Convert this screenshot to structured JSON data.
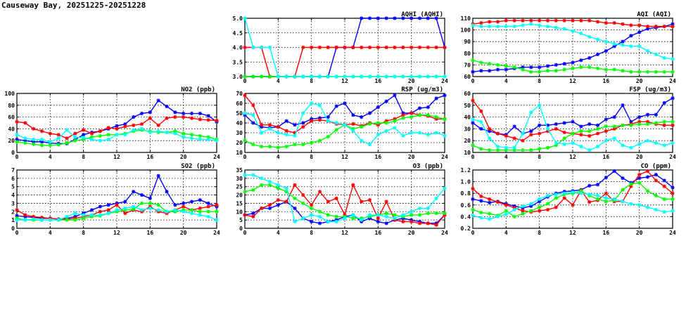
{
  "page_title": "Causeway Bay, 20251225-20251228",
  "series_colors": [
    "#0000ff",
    "#ff0000",
    "#00ff00",
    "#00ffff"
  ],
  "chart_data": [
    {
      "id": "aqhi",
      "type": "line",
      "title": "AQHI (AQHI)",
      "xlim": [
        0,
        24
      ],
      "ylim": [
        3.0,
        5.0
      ],
      "grid": true,
      "xticks": [
        0,
        4,
        8,
        12,
        16,
        20,
        24
      ],
      "yticks": [
        3.0,
        3.5,
        4.0,
        4.5,
        5.0
      ],
      "yfmt": 1,
      "series": [
        {
          "color": "#0000ff",
          "values": [
            3,
            3,
            3,
            3,
            3,
            3,
            3,
            3,
            3,
            3,
            3,
            4,
            4,
            4,
            5,
            5,
            5,
            5,
            5,
            5,
            5,
            5,
            5,
            5,
            4
          ]
        },
        {
          "color": "#ff0000",
          "values": [
            4,
            4,
            4,
            3,
            3,
            3,
            3,
            4,
            4,
            4,
            4,
            4,
            4,
            4,
            4,
            4,
            4,
            4,
            4,
            4,
            4,
            4,
            4,
            4,
            4
          ]
        },
        {
          "color": "#00ff00",
          "values": [
            3,
            3,
            3,
            3,
            3,
            3,
            3,
            3,
            3,
            3,
            3,
            3,
            3,
            3,
            3,
            3,
            3,
            3,
            3,
            3,
            3,
            3,
            3,
            3,
            3
          ]
        },
        {
          "color": "#00ffff",
          "values": [
            5,
            4,
            4,
            4,
            3,
            3,
            3,
            3,
            3,
            3,
            3,
            3,
            3,
            3,
            3,
            3,
            3,
            3,
            3,
            3,
            3,
            3,
            3,
            3,
            3
          ]
        }
      ]
    },
    {
      "id": "aqi",
      "type": "line",
      "title": "AQI (AQI)",
      "xlim": [
        0,
        24
      ],
      "ylim": [
        60,
        110
      ],
      "grid": true,
      "xticks": [
        0,
        4,
        8,
        12,
        16,
        20,
        24
      ],
      "yticks": [
        60,
        70,
        80,
        90,
        100,
        110
      ],
      "yfmt": 0,
      "series": [
        {
          "color": "#0000ff",
          "values": [
            64,
            65,
            65,
            66,
            66,
            67,
            68,
            68,
            68,
            69,
            70,
            71,
            72,
            74,
            76,
            79,
            82,
            86,
            90,
            95,
            98,
            101,
            102,
            103,
            105
          ]
        },
        {
          "color": "#ff0000",
          "values": [
            105,
            106,
            107,
            107,
            108,
            108,
            108,
            108,
            108,
            108,
            108,
            108,
            108,
            108,
            108,
            107,
            106,
            106,
            105,
            104,
            104,
            103,
            103,
            103,
            103
          ]
        },
        {
          "color": "#00ff00",
          "values": [
            74,
            72,
            71,
            70,
            69,
            68,
            66,
            64,
            64,
            65,
            65,
            66,
            67,
            68,
            68,
            67,
            66,
            66,
            65,
            64,
            64,
            64,
            64,
            64,
            64
          ]
        },
        {
          "color": "#00ffff",
          "values": [
            104,
            103,
            103,
            103,
            103,
            103,
            104,
            105,
            104,
            103,
            102,
            101,
            99,
            97,
            94,
            92,
            90,
            88,
            87,
            86,
            86,
            82,
            79,
            76,
            75
          ]
        }
      ]
    },
    {
      "id": "no2",
      "type": "line",
      "title": "NO2 (ppb)",
      "xlim": [
        0,
        24
      ],
      "ylim": [
        0,
        100
      ],
      "grid": true,
      "xticks": [
        0,
        4,
        8,
        12,
        16,
        20,
        24
      ],
      "yticks": [
        0,
        20,
        40,
        60,
        80,
        100
      ],
      "yfmt": 0,
      "series": [
        {
          "color": "#0000ff",
          "values": [
            22,
            20,
            18,
            18,
            16,
            15,
            15,
            22,
            30,
            34,
            36,
            40,
            45,
            48,
            60,
            66,
            68,
            88,
            78,
            68,
            66,
            66,
            66,
            62,
            52
          ]
        },
        {
          "color": "#ff0000",
          "values": [
            52,
            50,
            40,
            36,
            32,
            30,
            24,
            32,
            38,
            32,
            36,
            42,
            40,
            44,
            46,
            48,
            58,
            46,
            58,
            60,
            60,
            58,
            56,
            55,
            54
          ]
        },
        {
          "color": "#00ff00",
          "values": [
            18,
            16,
            14,
            12,
            12,
            13,
            16,
            20,
            22,
            26,
            28,
            30,
            30,
            32,
            36,
            38,
            36,
            34,
            34,
            36,
            32,
            30,
            28,
            26,
            22
          ]
        },
        {
          "color": "#00ffff",
          "values": [
            30,
            24,
            22,
            22,
            18,
            24,
            38,
            26,
            25,
            22,
            20,
            22,
            30,
            30,
            38,
            40,
            34,
            36,
            34,
            32,
            26,
            24,
            22,
            22,
            20
          ]
        }
      ]
    },
    {
      "id": "rsp",
      "type": "line",
      "title": "RSP (ug/m3)",
      "xlim": [
        0,
        24
      ],
      "ylim": [
        10,
        70
      ],
      "grid": true,
      "xticks": [
        0,
        4,
        8,
        12,
        16,
        20,
        24
      ],
      "yticks": [
        10,
        20,
        30,
        40,
        50,
        60,
        70
      ],
      "yfmt": 0,
      "series": [
        {
          "color": "#0000ff",
          "values": [
            48,
            40,
            36,
            35,
            36,
            42,
            38,
            40,
            44,
            45,
            46,
            57,
            60,
            48,
            46,
            50,
            56,
            62,
            68,
            50,
            50,
            55,
            56,
            65,
            68
          ]
        },
        {
          "color": "#ff0000",
          "values": [
            68,
            58,
            38,
            38,
            36,
            32,
            30,
            36,
            42,
            43,
            42,
            39,
            38,
            39,
            37,
            40,
            38,
            42,
            44,
            48,
            50,
            48,
            47,
            44,
            44
          ]
        },
        {
          "color": "#00ff00",
          "values": [
            22,
            18,
            16,
            16,
            15,
            16,
            18,
            18,
            20,
            22,
            26,
            33,
            38,
            34,
            36,
            39,
            40,
            40,
            42,
            45,
            46,
            48,
            48,
            46,
            44
          ]
        },
        {
          "color": "#00ffff",
          "values": [
            50,
            48,
            30,
            34,
            30,
            28,
            27,
            50,
            60,
            58,
            42,
            40,
            38,
            32,
            22,
            18,
            28,
            32,
            35,
            27,
            30,
            30,
            28,
            30,
            27
          ]
        }
      ]
    },
    {
      "id": "fsp",
      "type": "line",
      "title": "FSP (ug/m3)",
      "xlim": [
        0,
        24
      ],
      "ylim": [
        10,
        60
      ],
      "grid": true,
      "xticks": [
        0,
        4,
        8,
        12,
        16,
        20,
        24
      ],
      "yticks": [
        10,
        20,
        30,
        40,
        50,
        60
      ],
      "yfmt": 0,
      "series": [
        {
          "color": "#0000ff",
          "values": [
            35,
            30,
            28,
            26,
            25,
            32,
            26,
            28,
            33,
            33,
            34,
            35,
            36,
            32,
            34,
            33,
            38,
            40,
            50,
            36,
            40,
            42,
            42,
            52,
            56
          ]
        },
        {
          "color": "#ff0000",
          "values": [
            54,
            45,
            30,
            26,
            24,
            22,
            20,
            25,
            26,
            28,
            30,
            27,
            26,
            25,
            24,
            26,
            28,
            30,
            33,
            34,
            36,
            36,
            34,
            33,
            33
          ]
        },
        {
          "color": "#00ff00",
          "values": [
            16,
            13,
            12,
            12,
            12,
            12,
            12,
            12,
            13,
            14,
            16,
            22,
            26,
            28,
            28,
            30,
            32,
            32,
            33,
            33,
            34,
            34,
            35,
            36,
            36
          ]
        },
        {
          "color": "#00ffff",
          "values": [
            38,
            36,
            22,
            15,
            14,
            14,
            26,
            44,
            50,
            30,
            18,
            17,
            18,
            15,
            12,
            15,
            20,
            22,
            16,
            14,
            17,
            20,
            18,
            16,
            18
          ]
        }
      ]
    },
    {
      "id": "so2",
      "type": "line",
      "title": "SO2 (ppb)",
      "xlim": [
        0,
        24
      ],
      "ylim": [
        0,
        7
      ],
      "grid": true,
      "xticks": [
        0,
        4,
        8,
        12,
        16,
        20,
        24
      ],
      "yticks": [
        0,
        1,
        2,
        3,
        4,
        5,
        6,
        7
      ],
      "yfmt": 0,
      "series": [
        {
          "color": "#0000ff",
          "values": [
            1.5,
            1.4,
            1.3,
            1.2,
            1.2,
            1.1,
            1.2,
            1.4,
            1.8,
            2.2,
            2.6,
            2.8,
            3.0,
            3.2,
            4.4,
            4.0,
            3.6,
            6.3,
            4.4,
            2.8,
            3.0,
            3.2,
            3.4,
            3.0,
            2.6
          ]
        },
        {
          "color": "#ff0000",
          "values": [
            2.2,
            1.6,
            1.4,
            1.3,
            1.2,
            1.1,
            1.1,
            1.2,
            1.4,
            1.6,
            2.0,
            2.2,
            2.8,
            1.8,
            2.2,
            2.0,
            2.6,
            2.0,
            1.8,
            2.2,
            2.6,
            2.2,
            2.4,
            2.6,
            2.8
          ]
        },
        {
          "color": "#00ff00",
          "values": [
            1.2,
            1.0,
            1.0,
            1.0,
            1.0,
            1.0,
            1.0,
            1.0,
            1.2,
            1.4,
            1.5,
            1.8,
            2.0,
            2.2,
            2.3,
            3.0,
            3.0,
            2.8,
            2.0,
            2.0,
            2.2,
            2.2,
            2.0,
            2.0,
            2.0
          ]
        },
        {
          "color": "#00ffff",
          "values": [
            1.0,
            1.0,
            1.1,
            1.0,
            1.0,
            1.0,
            1.4,
            1.8,
            1.6,
            1.6,
            1.6,
            1.8,
            2.2,
            2.4,
            2.6,
            2.2,
            2.4,
            2.2,
            2.0,
            2.2,
            2.0,
            1.8,
            1.6,
            1.4,
            1.0
          ]
        }
      ]
    },
    {
      "id": "o3",
      "type": "line",
      "title": "O3 (ppb)",
      "xlim": [
        0,
        24
      ],
      "ylim": [
        0,
        35
      ],
      "grid": true,
      "xticks": [
        0,
        4,
        8,
        12,
        16,
        20,
        24
      ],
      "yticks": [
        0,
        5,
        10,
        15,
        20,
        25,
        30,
        35
      ],
      "yfmt": 0,
      "series": [
        {
          "color": "#0000ff",
          "values": [
            8,
            9,
            12,
            12,
            14,
            16,
            12,
            6,
            4,
            3,
            4,
            5,
            7,
            8,
            4,
            6,
            4,
            3,
            5,
            6,
            5,
            4,
            3,
            3,
            8
          ]
        },
        {
          "color": "#ff0000",
          "values": [
            8,
            7,
            12,
            14,
            17,
            16,
            26,
            20,
            14,
            22,
            16,
            18,
            8,
            26,
            16,
            17,
            6,
            16,
            5,
            4,
            4,
            3,
            3,
            2,
            8
          ]
        },
        {
          "color": "#00ff00",
          "values": [
            22,
            23,
            26,
            26,
            24,
            22,
            18,
            15,
            12,
            10,
            8,
            7,
            7,
            6,
            6,
            7,
            8,
            9,
            8,
            7,
            8,
            8,
            9,
            9,
            9
          ]
        },
        {
          "color": "#00ffff",
          "values": [
            32,
            32,
            30,
            28,
            26,
            24,
            4,
            6,
            8,
            7,
            4,
            4,
            6,
            8,
            5,
            8,
            8,
            7,
            6,
            8,
            10,
            12,
            12,
            18,
            24
          ]
        }
      ]
    },
    {
      "id": "co",
      "type": "line",
      "title": "CO (ppm)",
      "xlim": [
        0,
        24
      ],
      "ylim": [
        0.2,
        1.2
      ],
      "grid": true,
      "xticks": [
        0,
        4,
        8,
        12,
        16,
        20,
        24
      ],
      "yticks": [
        0.2,
        0.4,
        0.6,
        0.8,
        1.0,
        1.2
      ],
      "yfmt": 1,
      "series": [
        {
          "color": "#0000ff",
          "values": [
            0.7,
            0.67,
            0.64,
            0.66,
            0.62,
            0.58,
            0.55,
            0.58,
            0.66,
            0.74,
            0.8,
            0.83,
            0.84,
            0.86,
            0.93,
            0.95,
            1.07,
            1.18,
            1.06,
            0.98,
            1.06,
            1.08,
            1.12,
            1.02,
            0.9
          ]
        },
        {
          "color": "#ff0000",
          "values": [
            0.88,
            0.75,
            0.7,
            0.65,
            0.6,
            0.55,
            0.5,
            0.48,
            0.5,
            0.52,
            0.56,
            0.72,
            0.6,
            0.85,
            0.65,
            0.68,
            0.8,
            0.66,
            0.66,
            0.92,
            1.12,
            1.18,
            1.02,
            0.92,
            0.8
          ]
        },
        {
          "color": "#00ff00",
          "values": [
            0.52,
            0.47,
            0.45,
            0.42,
            0.5,
            0.4,
            0.45,
            0.5,
            0.56,
            0.62,
            0.72,
            0.78,
            0.8,
            0.84,
            0.76,
            0.7,
            0.66,
            0.68,
            0.86,
            0.96,
            0.98,
            0.84,
            0.76,
            0.7,
            0.7
          ]
        },
        {
          "color": "#00ffff",
          "values": [
            0.42,
            0.38,
            0.36,
            0.4,
            0.44,
            0.52,
            0.58,
            0.62,
            0.7,
            0.76,
            0.78,
            0.8,
            0.82,
            0.8,
            0.78,
            0.76,
            0.72,
            0.7,
            0.66,
            0.62,
            0.6,
            0.56,
            0.52,
            0.48,
            0.5
          ]
        }
      ]
    }
  ]
}
